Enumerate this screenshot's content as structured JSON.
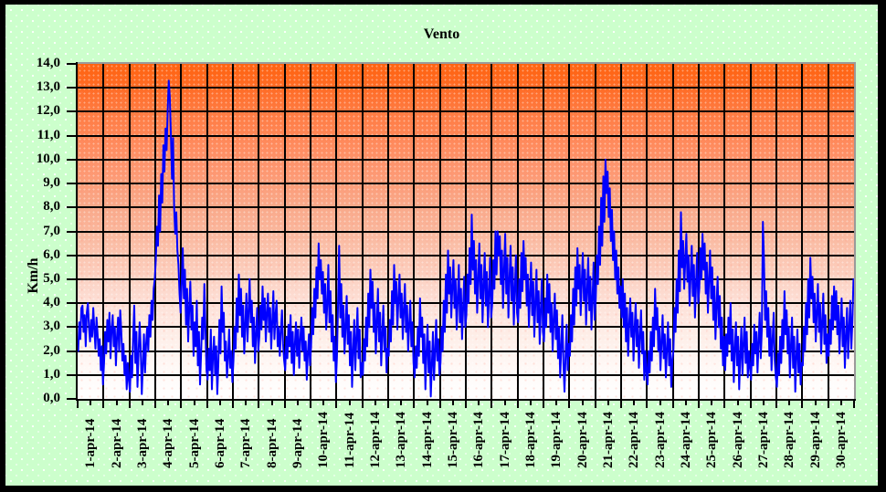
{
  "colors": {
    "frame": "#000000",
    "chart_background": "#ccffcc",
    "series_line": "#0000ff",
    "gridline": "#000000",
    "plot_gradient_top": "#ff6310",
    "plot_gradient_bottom": "#ffffff",
    "plot_border": "#9a9a9a"
  },
  "chart_data": {
    "type": "line",
    "title": "Vento",
    "xlabel": "",
    "ylabel": "Km/h",
    "ylim": [
      0,
      14
    ],
    "ytick_step": 1.0,
    "ytick_labels": [
      "0,0",
      "1,0",
      "2,0",
      "3,0",
      "4,0",
      "5,0",
      "6,0",
      "7,0",
      "8,0",
      "9,0",
      "10,0",
      "11,0",
      "12,0",
      "13,0",
      "14,0"
    ],
    "categories": [
      "1-apr-14",
      "2-apr-14",
      "3-apr-14",
      "4-apr-14",
      "5-apr-14",
      "6-apr-14",
      "7-apr-14",
      "8-apr-14",
      "9-apr-14",
      "10-apr-14",
      "11-apr-14",
      "12-apr-14",
      "13-apr-14",
      "14-apr-14",
      "15-apr-14",
      "16-apr-14",
      "17-apr-14",
      "18-apr-14",
      "19-apr-14",
      "20-apr-14",
      "21-apr-14",
      "22-apr-14",
      "23-apr-14",
      "24-apr-14",
      "25-apr-14",
      "26-apr-14",
      "27-apr-14",
      "28-apr-14",
      "29-apr-14",
      "30-apr-14"
    ],
    "x_minor_ticks_per_day": 2,
    "grid": "both",
    "legend": "none",
    "series": [
      {
        "name": "Vento",
        "unit": "Km/h",
        "color": "#0000ff",
        "samples_per_day": 24,
        "values_by_day": [
          [
            2.0,
            3.2,
            2.5,
            3.8,
            3.9,
            2.8,
            3.5,
            2.2,
            3.6,
            4.0,
            3.0,
            2.4,
            3.3,
            2.6,
            3.8,
            2.9,
            2.1,
            3.4,
            2.7,
            1.8,
            2.5,
            1.2,
            2.2,
            0.6
          ],
          [
            1.5,
            2.8,
            1.9,
            3.3,
            2.4,
            3.6,
            1.7,
            2.9,
            3.5,
            2.2,
            3.0,
            1.4,
            2.6,
            3.4,
            2.0,
            3.7,
            2.8,
            1.6,
            2.3,
            1.0,
            1.8,
            0.4,
            1.5,
            0.8
          ],
          [
            0.3,
            1.8,
            0.9,
            2.6,
            3.9,
            1.5,
            2.8,
            0.5,
            1.9,
            3.2,
            2.1,
            0.2,
            1.4,
            2.7,
            1.1,
            2.3,
            3.0,
            2.0,
            3.5,
            2.6,
            4.1,
            3.3,
            4.6,
            5.0
          ],
          [
            5.8,
            7.2,
            6.4,
            8.5,
            7.0,
            9.4,
            8.2,
            10.6,
            9.5,
            11.3,
            10.4,
            12.1,
            13.3,
            12.6,
            11.0,
            9.2,
            10.9,
            8.0,
            6.9,
            7.8,
            6.2,
            5.6,
            4.4,
            3.6
          ],
          [
            4.8,
            6.3,
            4.2,
            5.4,
            3.1,
            4.6,
            2.4,
            3.8,
            4.9,
            2.9,
            3.9,
            1.8,
            3.2,
            2.2,
            4.1,
            1.4,
            2.8,
            0.6,
            1.9,
            3.4,
            2.5,
            4.8,
            3.0,
            1.2
          ],
          [
            0.8,
            2.1,
            1.2,
            2.9,
            0.4,
            1.8,
            2.6,
            1.0,
            2.2,
            0.2,
            1.5,
            3.3,
            1.9,
            4.7,
            2.8,
            3.6,
            1.6,
            2.4,
            0.9,
            1.7,
            2.9,
            1.3,
            2.0,
            0.7
          ],
          [
            1.6,
            3.0,
            2.1,
            4.2,
            2.8,
            5.2,
            3.5,
            4.6,
            2.6,
            3.9,
            1.9,
            3.1,
            4.4,
            2.4,
            3.6,
            5.0,
            3.2,
            4.1,
            2.2,
            3.4,
            1.5,
            2.7,
            3.8,
            2.0
          ],
          [
            2.6,
            3.9,
            2.9,
            4.7,
            3.3,
            4.2,
            2.4,
            3.6,
            4.4,
            2.8,
            3.8,
            2.1,
            3.2,
            4.5,
            2.5,
            3.5,
            4.1,
            2.2,
            3.0,
            1.8,
            2.8,
            3.7,
            2.3,
            1.6
          ],
          [
            1.2,
            2.6,
            1.7,
            3.1,
            2.2,
            3.5,
            1.5,
            2.8,
            1.0,
            2.3,
            3.2,
            1.8,
            2.9,
            1.3,
            2.5,
            3.4,
            2.0,
            3.0,
            1.6,
            2.4,
            0.8,
            1.9,
            2.7,
            1.4
          ],
          [
            2.2,
            3.8,
            2.7,
            4.6,
            3.4,
            5.5,
            4.2,
            6.5,
            5.0,
            5.8,
            4.4,
            5.3,
            3.6,
            4.8,
            2.9,
            4.0,
            5.6,
            3.2,
            4.5,
            2.4,
            3.5,
            1.6,
            2.6,
            0.7
          ],
          [
            1.8,
            4.0,
            6.4,
            3.4,
            4.8,
            2.6,
            3.9,
            1.9,
            3.0,
            4.3,
            2.3,
            3.5,
            1.4,
            2.8,
            0.5,
            2.0,
            3.3,
            1.2,
            2.5,
            3.8,
            1.7,
            2.9,
            0.9,
            1.5
          ],
          [
            1.0,
            2.5,
            1.6,
            3.4,
            2.2,
            4.4,
            3.0,
            5.4,
            3.8,
            4.9,
            2.8,
            4.0,
            1.9,
            3.2,
            4.6,
            2.4,
            3.6,
            1.4,
            2.7,
            3.9,
            2.0,
            3.0,
            1.1,
            2.1
          ],
          [
            1.8,
            3.3,
            2.4,
            4.5,
            3.1,
            5.6,
            4.0,
            4.9,
            2.9,
            4.2,
            5.2,
            3.4,
            4.4,
            2.5,
            3.7,
            4.8,
            2.8,
            3.9,
            2.0,
            3.1,
            4.1,
            2.2,
            3.2,
            1.5
          ],
          [
            0.9,
            2.2,
            1.3,
            3.0,
            1.8,
            4.2,
            2.6,
            3.4,
            1.5,
            2.7,
            0.4,
            1.9,
            3.1,
            1.1,
            2.4,
            0.1,
            1.4,
            2.8,
            0.8,
            2.0,
            3.3,
            1.6,
            2.5,
            1.0
          ],
          [
            1.5,
            3.0,
            2.0,
            4.1,
            2.8,
            5.2,
            3.6,
            6.2,
            4.4,
            5.5,
            3.4,
            4.7,
            5.8,
            3.8,
            5.0,
            2.9,
            4.2,
            5.6,
            3.2,
            4.6,
            2.5,
            3.8,
            5.1,
            3.0
          ],
          [
            3.5,
            5.2,
            4.0,
            6.3,
            4.8,
            7.7,
            5.4,
            6.6,
            4.4,
            5.8,
            3.6,
            5.0,
            6.5,
            4.2,
            5.6,
            3.2,
            4.7,
            6.1,
            3.9,
            5.3,
            3.0,
            4.4,
            5.9,
            3.4
          ],
          [
            4.0,
            5.8,
            4.6,
            7.0,
            5.2,
            7.0,
            6.0,
            6.8,
            4.8,
            6.2,
            3.8,
            5.4,
            6.9,
            4.4,
            5.9,
            3.4,
            5.0,
            6.4,
            4.1,
            5.5,
            3.1,
            4.6,
            6.0,
            3.6
          ],
          [
            3.2,
            5.0,
            3.8,
            6.1,
            4.5,
            6.6,
            5.0,
            5.9,
            3.9,
            5.2,
            3.0,
            4.4,
            5.7,
            3.5,
            4.9,
            2.6,
            4.0,
            5.4,
            3.2,
            4.5,
            2.3,
            3.7,
            5.0,
            2.8
          ],
          [
            2.4,
            4.2,
            3.0,
            5.2,
            3.6,
            4.8,
            2.8,
            4.0,
            2.0,
            3.3,
            4.4,
            2.5,
            3.7,
            1.7,
            3.0,
            0.9,
            2.2,
            3.5,
            1.5,
            0.3,
            1.8,
            3.1,
            1.2,
            2.3
          ],
          [
            1.8,
            3.5,
            2.4,
            4.6,
            3.1,
            5.5,
            3.9,
            6.3,
            4.6,
            5.6,
            3.5,
            4.9,
            6.1,
            4.1,
            5.4,
            3.1,
            4.5,
            5.9,
            3.7,
            5.1,
            2.9,
            4.2,
            5.7,
            3.3
          ],
          [
            4.2,
            6.0,
            4.8,
            7.2,
            5.6,
            8.4,
            6.4,
            9.3,
            7.4,
            10.0,
            8.6,
            9.5,
            7.6,
            8.8,
            6.6,
            7.9,
            5.8,
            7.0,
            5.0,
            6.2,
            4.4,
            5.5,
            3.8,
            4.7
          ],
          [
            3.4,
            5.0,
            3.0,
            4.4,
            2.4,
            3.8,
            1.8,
            3.1,
            4.2,
            2.6,
            3.6,
            1.6,
            2.9,
            4.0,
            2.2,
            3.3,
            1.3,
            2.6,
            3.7,
            1.9,
            2.8,
            0.8,
            2.0,
            1.1
          ],
          [
            0.6,
            2.0,
            1.1,
            2.8,
            1.6,
            3.4,
            2.2,
            4.6,
            2.9,
            3.8,
            2.0,
            3.0,
            1.2,
            2.4,
            3.5,
            1.7,
            2.7,
            0.9,
            2.1,
            3.2,
            1.4,
            2.5,
            0.5,
            1.6
          ],
          [
            2.0,
            3.8,
            2.8,
            5.0,
            3.6,
            6.2,
            4.5,
            7.8,
            5.5,
            6.6,
            4.6,
            5.8,
            6.9,
            4.9,
            6.0,
            3.9,
            5.2,
            6.4,
            4.3,
            5.6,
            3.4,
            4.8,
            6.1,
            4.0
          ],
          [
            4.6,
            6.3,
            5.0,
            6.9,
            5.4,
            6.5,
            4.4,
            5.7,
            3.6,
            5.0,
            6.2,
            4.2,
            5.5,
            3.3,
            4.7,
            2.5,
            3.9,
            5.1,
            3.0,
            4.3,
            2.1,
            3.4,
            1.4,
            2.6
          ],
          [
            1.2,
            2.7,
            1.8,
            3.4,
            2.3,
            4.0,
            1.6,
            2.9,
            0.7,
            2.1,
            3.2,
            1.4,
            2.6,
            0.4,
            1.8,
            3.0,
            1.0,
            2.3,
            3.4,
            1.5,
            2.8,
            0.9,
            2.0,
            1.3
          ],
          [
            0.8,
            2.3,
            1.4,
            3.1,
            1.9,
            2.8,
            1.1,
            2.4,
            3.6,
            1.7,
            2.9,
            7.4,
            5.8,
            3.3,
            4.5,
            2.6,
            3.8,
            1.8,
            3.0,
            1.2,
            2.5,
            3.6,
            1.6,
            0.9
          ],
          [
            0.5,
            1.9,
            1.0,
            2.6,
            1.5,
            3.3,
            2.1,
            4.5,
            2.7,
            3.7,
            1.9,
            3.0,
            0.9,
            2.2,
            3.4,
            1.3,
            2.6,
            0.3,
            1.7,
            2.9,
            1.1,
            2.3,
            0.6,
            1.5
          ],
          [
            1.4,
            3.0,
            2.0,
            4.0,
            2.7,
            5.0,
            3.4,
            5.9,
            4.2,
            5.1,
            3.2,
            4.4,
            2.4,
            3.6,
            4.8,
            2.8,
            4.0,
            1.9,
            3.2,
            4.4,
            2.3,
            3.5,
            1.5,
            2.7
          ],
          [
            1.8,
            3.3,
            2.3,
            4.3,
            2.9,
            4.7,
            3.3,
            4.5,
            2.7,
            3.9,
            1.9,
            3.1,
            4.2,
            2.2,
            3.4,
            1.3,
            2.6,
            3.8,
            1.7,
            3.0,
            4.1,
            2.1,
            3.3,
            5.0
          ]
        ]
      }
    ]
  }
}
